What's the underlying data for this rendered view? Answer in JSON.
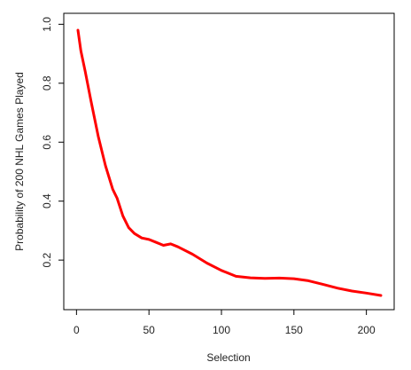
{
  "chart_data": {
    "type": "line",
    "title": "",
    "xlabel": "Selection",
    "ylabel": "Probability of 200 NHL Games Played",
    "xlim": [
      1,
      210
    ],
    "ylim": [
      0.08,
      0.98
    ],
    "x_ticks": [
      0,
      50,
      100,
      150,
      200
    ],
    "y_ticks": [
      0.2,
      0.4,
      0.6,
      0.8,
      1.0
    ],
    "x_tick_labels": [
      "0",
      "50",
      "100",
      "150",
      "200"
    ],
    "y_tick_labels": [
      "0.2",
      "0.4",
      "0.6",
      "0.8",
      "1.0"
    ],
    "grid": false,
    "legend": "none",
    "line_color": "#ff0000",
    "series": [
      {
        "x": [
          1,
          3,
          6,
          10,
          15,
          20,
          25,
          28,
          32,
          36,
          40,
          45,
          50,
          55,
          60,
          65,
          70,
          80,
          90,
          100,
          110,
          120,
          130,
          140,
          150,
          160,
          170,
          180,
          190,
          200,
          210
        ],
        "values": [
          0.98,
          0.91,
          0.84,
          0.74,
          0.62,
          0.52,
          0.44,
          0.41,
          0.35,
          0.31,
          0.29,
          0.275,
          0.27,
          0.26,
          0.25,
          0.255,
          0.245,
          0.22,
          0.19,
          0.165,
          0.145,
          0.14,
          0.138,
          0.139,
          0.137,
          0.13,
          0.118,
          0.105,
          0.095,
          0.088,
          0.08
        ]
      }
    ]
  }
}
